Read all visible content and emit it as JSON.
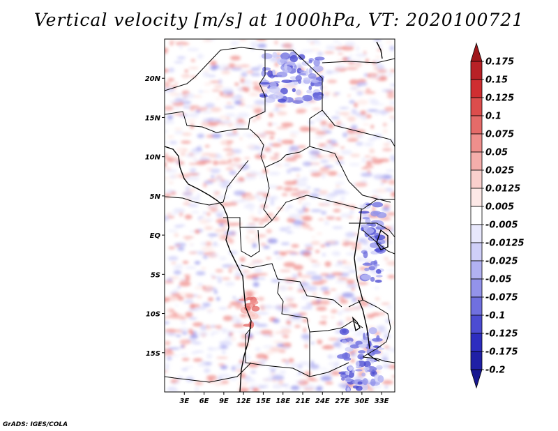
{
  "chart_data": {
    "type": "heatmap",
    "title": "Vertical velocity [m/s] at 1000hPa, VT: 2020100721",
    "variable": "Vertical velocity",
    "units": "m/s",
    "level": "1000hPa",
    "valid_time": "2020100721",
    "x_range": [
      0,
      35
    ],
    "y_range": [
      -20,
      25
    ],
    "x_ticks": [
      {
        "value": 3,
        "label": "3E"
      },
      {
        "value": 6,
        "label": "6E"
      },
      {
        "value": 9,
        "label": "9E"
      },
      {
        "value": 12,
        "label": "12E"
      },
      {
        "value": 15,
        "label": "15E"
      },
      {
        "value": 18,
        "label": "18E"
      },
      {
        "value": 21,
        "label": "21E"
      },
      {
        "value": 24,
        "label": "24E"
      },
      {
        "value": 27,
        "label": "27E"
      },
      {
        "value": 30,
        "label": "30E"
      },
      {
        "value": 33,
        "label": "33E"
      }
    ],
    "y_ticks": [
      {
        "value": 20,
        "label": "20N"
      },
      {
        "value": 15,
        "label": "15N"
      },
      {
        "value": 10,
        "label": "10N"
      },
      {
        "value": 5,
        "label": "5N"
      },
      {
        "value": 0,
        "label": "EQ"
      },
      {
        "value": -5,
        "label": "5S"
      },
      {
        "value": -10,
        "label": "10S"
      },
      {
        "value": -15,
        "label": "15S"
      }
    ],
    "colorbar": {
      "levels": [
        "0.175",
        "0.15",
        "0.125",
        "0.1",
        "0.075",
        "0.05",
        "0.025",
        "0.0125",
        "0.005",
        "-0.005",
        "-0.0125",
        "-0.025",
        "-0.05",
        "-0.075",
        "-0.1",
        "-0.125",
        "-0.175",
        "-0.2"
      ],
      "colors": [
        "#a0171b",
        "#b82126",
        "#cf2e31",
        "#dc4d4c",
        "#e56b69",
        "#ef8f8c",
        "#f5aeab",
        "#fad0cd",
        "#fde9e7",
        "#ffffff",
        "#e8e8fc",
        "#cfcff8",
        "#b2b2f2",
        "#9393ea",
        "#7070df",
        "#4c4cd2",
        "#2d2dbf",
        "#2020a6",
        "#181890"
      ]
    },
    "features": [
      {
        "type": "negative-band",
        "lon": [
          30,
          33
        ],
        "lat": [
          -6,
          4
        ]
      },
      {
        "type": "negative-band",
        "lon": [
          27,
          33
        ],
        "lat": [
          -20,
          -12
        ]
      },
      {
        "type": "negative-cluster",
        "lon": [
          15,
          24
        ],
        "lat": [
          17,
          23
        ]
      },
      {
        "type": "positive-patch",
        "lon": [
          12,
          14
        ],
        "lat": [
          -12,
          -8
        ]
      }
    ]
  },
  "footer": {
    "credit": "GrADS: IGES/COLA"
  }
}
